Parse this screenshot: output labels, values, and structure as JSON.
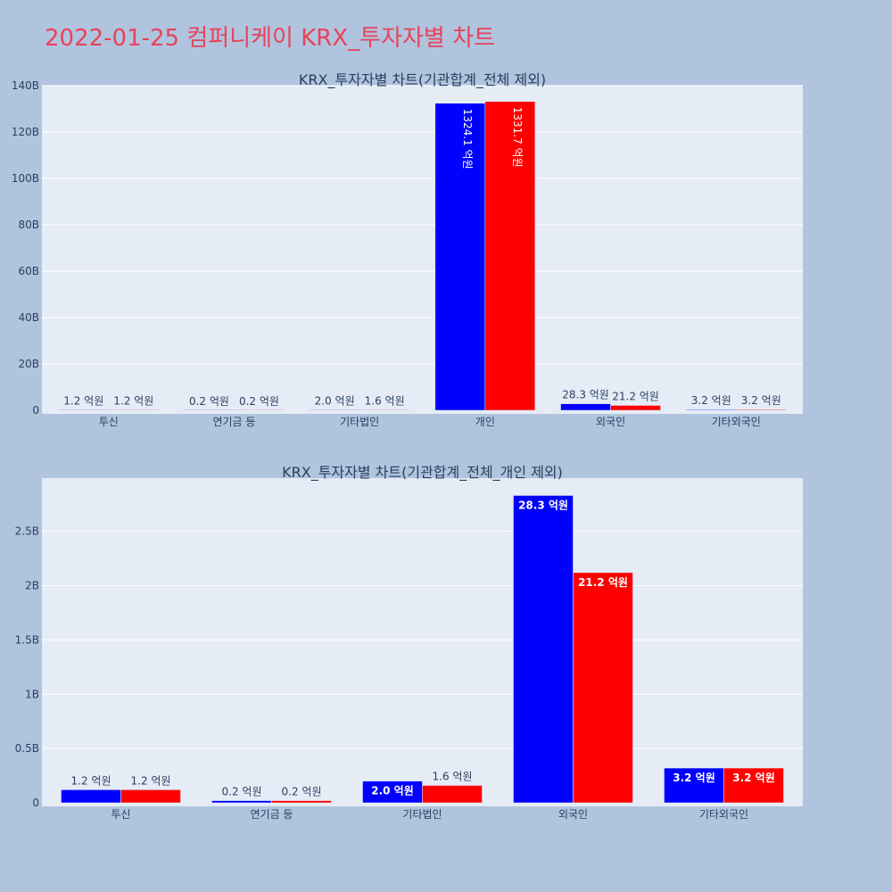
{
  "title": "2022-01-25 컴퍼니케이 KRX_투자자별 차트",
  "colors": {
    "buy": "#0000ff",
    "sell": "#ff0000",
    "plot_bg": "#e5ecf6",
    "page_bg": "#b0c4de",
    "title": "#e8435a"
  },
  "chart_data": [
    {
      "type": "bar",
      "title": "KRX_투자자별 차트(기관합계_전체 제외)",
      "categories": [
        "투신",
        "연기금 등",
        "기타법인",
        "개인",
        "외국인",
        "기타외국인"
      ],
      "series": [
        {
          "name": "buy",
          "color": "#0000ff",
          "values": [
            120000000.0,
            20000000.0,
            200000000.0,
            132410000000.0,
            2830000000.0,
            320000000.0
          ],
          "labels": [
            "1.2 억원",
            "0.2 억원",
            "2.0 억원",
            "1324.1 억원",
            "28.3 억원",
            "3.2 억원"
          ]
        },
        {
          "name": "sell",
          "color": "#ff0000",
          "values": [
            120000000.0,
            20000000.0,
            160000000.0,
            133170000000.0,
            2120000000.0,
            320000000.0
          ],
          "labels": [
            "1.2 억원",
            "0.2 억원",
            "1.6 억원",
            "1331.7 억원",
            "21.2 억원",
            "3.2 억원"
          ]
        }
      ],
      "ylim": [
        0,
        140000000000.0
      ],
      "yticks": [
        0,
        20000000000.0,
        40000000000.0,
        60000000000.0,
        80000000000.0,
        100000000000.0,
        120000000000.0,
        140000000000.0
      ],
      "ytick_labels": [
        "0",
        "20B",
        "40B",
        "60B",
        "80B",
        "100B",
        "120B",
        "140B"
      ]
    },
    {
      "type": "bar",
      "title": "KRX_투자자별 차트(기관합계_전체_개인 제외)",
      "categories": [
        "투신",
        "연기금 등",
        "기타법인",
        "외국인",
        "기타외국인"
      ],
      "series": [
        {
          "name": "buy",
          "color": "#0000ff",
          "values": [
            120000000.0,
            20000000.0,
            200000000.0,
            2830000000.0,
            320000000.0
          ],
          "labels": [
            "1.2 억원",
            "0.2 억원",
            "2.0 억원",
            "28.3 억원",
            "3.2 억원"
          ]
        },
        {
          "name": "sell",
          "color": "#ff0000",
          "values": [
            120000000.0,
            20000000.0,
            160000000.0,
            2120000000.0,
            320000000.0
          ],
          "labels": [
            "1.2 억원",
            "0.2 억원",
            "1.6 억원",
            "21.2 억원",
            "3.2 억원"
          ]
        }
      ],
      "ylim": [
        0,
        2990000000.0
      ],
      "yticks": [
        0,
        500000000.0,
        1000000000.0,
        1500000000.0,
        2000000000.0,
        2500000000.0
      ],
      "ytick_labels": [
        "0",
        "0.5B",
        "1B",
        "1.5B",
        "2B",
        "2.5B"
      ]
    }
  ]
}
